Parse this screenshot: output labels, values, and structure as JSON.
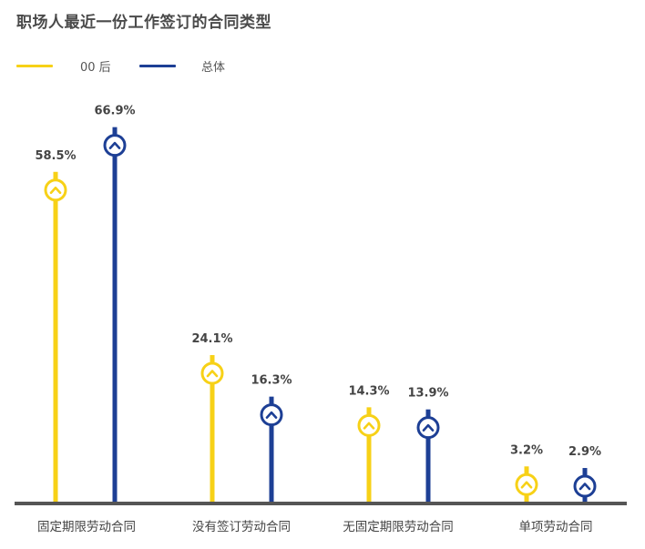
{
  "title": "职场人最近一份工作签订的合同类型",
  "colors": {
    "series_0": "#F7D117",
    "series_1": "#1D3F95",
    "axis": "#555555"
  },
  "chart_data": {
    "type": "bar",
    "title": "职场人最近一份工作签订的合同类型",
    "xlabel": "",
    "ylabel": "",
    "ylim": [
      0,
      70
    ],
    "grid": false,
    "legend_position": "top-left",
    "categories": [
      "固定期限劳动合同",
      "没有签订劳动合同",
      "无固定期限劳动合同",
      "单项劳动合同"
    ],
    "series": [
      {
        "name": "00 后",
        "values": [
          58.5,
          24.1,
          14.3,
          3.2
        ],
        "labels": [
          "58.5%",
          "24.1%",
          "14.3%",
          "3.2%"
        ]
      },
      {
        "name": "总体",
        "values": [
          66.9,
          16.3,
          13.9,
          2.9
        ],
        "labels": [
          "66.9%",
          "16.3%",
          "13.9%",
          "2.9%"
        ]
      }
    ]
  }
}
